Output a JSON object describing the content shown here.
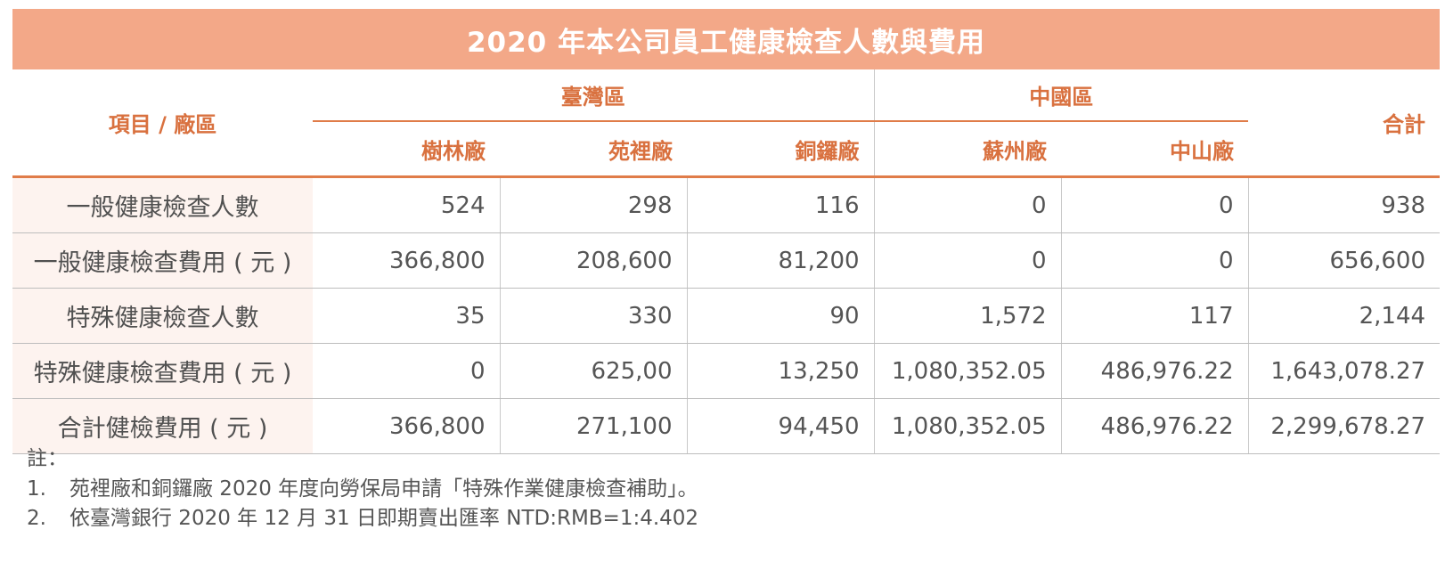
{
  "title": "2020 年本公司員工健康檢查人數與費用",
  "header": {
    "corner": "項目 / 廠區",
    "regions": [
      "臺灣區",
      "中國區"
    ],
    "total": "合計",
    "plants": [
      "樹林廠",
      "苑裡廠",
      "銅鑼廠",
      "蘇州廠",
      "中山廠"
    ]
  },
  "rows": [
    {
      "label": "一般健康檢查人數",
      "values": [
        "524",
        "298",
        "116",
        "0",
        "0",
        "938"
      ]
    },
    {
      "label": "一般健康檢查費用 ( 元 )",
      "values": [
        "366,800",
        "208,600",
        "81,200",
        "0",
        "0",
        "656,600"
      ]
    },
    {
      "label": "特殊健康檢查人數",
      "values": [
        "35",
        "330",
        "90",
        "1,572",
        "117",
        "2,144"
      ]
    },
    {
      "label": "特殊健康檢查費用 ( 元 )",
      "values": [
        "0",
        "625,00",
        "13,250",
        "1,080,352.05",
        "486,976.22",
        "1,643,078.27"
      ]
    },
    {
      "label": "合計健檢費用 ( 元 )",
      "values": [
        "366,800",
        "271,100",
        "94,450",
        "1,080,352.05",
        "486,976.22",
        "2,299,678.27"
      ]
    }
  ],
  "notes": {
    "title": "註：",
    "items": [
      {
        "num": "1.",
        "text": "苑裡廠和銅鑼廠 2020 年度向勞保局申請「特殊作業健康檢查補助」。"
      },
      {
        "num": "2.",
        "text": "依臺灣銀行 2020 年 12 月 31 日即期賣出匯率 NTD:RMB=1:4.402"
      }
    ]
  }
}
